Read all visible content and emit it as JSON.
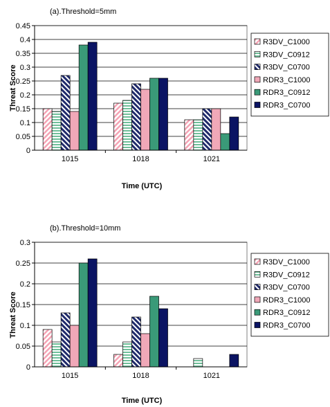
{
  "chart_data": [
    {
      "type": "bar",
      "title": "(a).Threshold=5mm",
      "xlabel": "Time (UTC)",
      "ylabel": "Threat Score",
      "categories": [
        "1015",
        "1018",
        "1021"
      ],
      "ylim": [
        0,
        0.45
      ],
      "yticks": [
        0,
        0.05,
        0.1,
        0.15,
        0.2,
        0.25,
        0.3,
        0.35,
        0.4,
        0.45
      ],
      "ytick_labels": [
        "0",
        "0.05",
        "0.1",
        "0.15",
        "0.2",
        "0.25",
        "0.3",
        "0.35",
        "0.4",
        "0.45"
      ],
      "grid": true,
      "legend": "right",
      "series": [
        {
          "name": "R3DV_C1000",
          "values": [
            0.15,
            0.17,
            0.11
          ]
        },
        {
          "name": "R3DV_C0912",
          "values": [
            0.14,
            0.18,
            0.11
          ]
        },
        {
          "name": "R3DV_C0700",
          "values": [
            0.27,
            0.24,
            0.15
          ]
        },
        {
          "name": "RDR3_C1000",
          "values": [
            0.14,
            0.22,
            0.15
          ]
        },
        {
          "name": "RDR3_C0912",
          "values": [
            0.38,
            0.26,
            0.06
          ]
        },
        {
          "name": "RDR3_C0700",
          "values": [
            0.39,
            0.26,
            0.12
          ]
        }
      ]
    },
    {
      "type": "bar",
      "title": "(b).Threshold=10mm",
      "xlabel": "Time (UTC)",
      "ylabel": "Threat Score",
      "categories": [
        "1015",
        "1018",
        "1021"
      ],
      "ylim": [
        0,
        0.3
      ],
      "yticks": [
        0,
        0.05,
        0.1,
        0.15,
        0.2,
        0.25,
        0.3
      ],
      "ytick_labels": [
        "0",
        "0.05",
        "0.1",
        "0.15",
        "0.2",
        "0.25",
        "0.3"
      ],
      "grid": true,
      "legend": "right",
      "series": [
        {
          "name": "R3DV_C1000",
          "values": [
            0.09,
            0.03,
            0
          ]
        },
        {
          "name": "R3DV_C0912",
          "values": [
            0.06,
            0.06,
            0.02
          ]
        },
        {
          "name": "R3DV_C0700",
          "values": [
            0.13,
            0.12,
            0
          ]
        },
        {
          "name": "RDR3_C1000",
          "values": [
            0.1,
            0.08,
            0
          ]
        },
        {
          "name": "RDR3_C0912",
          "values": [
            0.25,
            0.17,
            0
          ]
        },
        {
          "name": "RDR3_C0700",
          "values": [
            0.26,
            0.14,
            0.03
          ]
        }
      ]
    }
  ],
  "series_style": [
    {
      "pattern": "diag-pink",
      "color": "#f4a3b4",
      "stroke": "#000000"
    },
    {
      "pattern": "horiz-green",
      "color": "#6fbf9a",
      "stroke": "#000000"
    },
    {
      "pattern": "diag-navy",
      "color": "#1f2a6b",
      "stroke": "#000000"
    },
    {
      "pattern": "solid",
      "color": "#f0a8b8",
      "stroke": "#000000"
    },
    {
      "pattern": "solid",
      "color": "#3a9a78",
      "stroke": "#000000"
    },
    {
      "pattern": "solid",
      "color": "#0b1463",
      "stroke": "#000000"
    }
  ]
}
